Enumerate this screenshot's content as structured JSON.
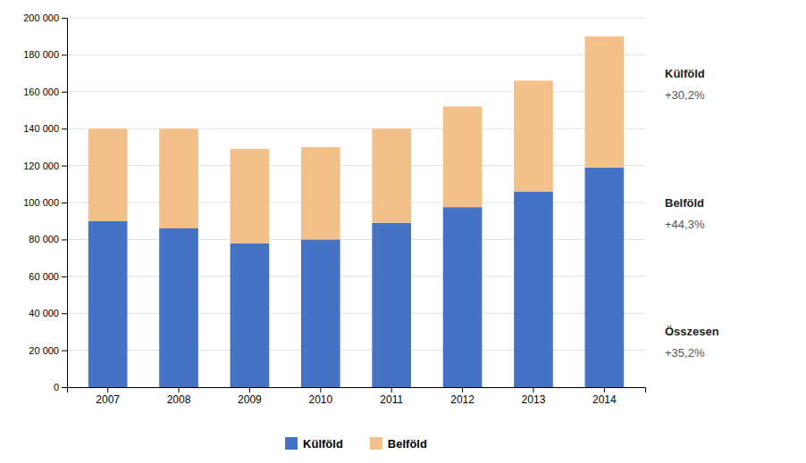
{
  "chart_data": {
    "type": "bar",
    "stacked": true,
    "categories": [
      "2007",
      "2008",
      "2009",
      "2010",
      "2011",
      "2012",
      "2013",
      "2014"
    ],
    "series": [
      {
        "name": "Külföld",
        "color": "#4472C4",
        "values": [
          90000,
          86000,
          78000,
          80000,
          89000,
          97500,
          106000,
          119000
        ]
      },
      {
        "name": "Belföld",
        "color": "#F4C08A",
        "values": [
          50000,
          54000,
          51000,
          50000,
          51000,
          54500,
          60000,
          71000
        ]
      }
    ],
    "ylim": [
      0,
      200000
    ],
    "yticks": [
      0,
      {
        "value": 20000,
        "label": "20 000"
      },
      {
        "value": 40000,
        "label": "40 000"
      },
      {
        "value": 60000,
        "label": "60 000"
      },
      {
        "value": 80000,
        "label": "80 000"
      },
      {
        "value": 100000,
        "label": "100 000"
      },
      {
        "value": 120000,
        "label": "120 000"
      },
      {
        "value": 140000,
        "label": "140 000"
      },
      {
        "value": 160000,
        "label": "160 000"
      },
      {
        "value": 180000,
        "label": "180 000"
      },
      {
        "value": 200000,
        "label": "200 000"
      }
    ],
    "grid": true,
    "legend": "bottom",
    "annotations": [
      {
        "text": "Külföld",
        "subtext": "+30,2%"
      },
      {
        "text": "Belföld",
        "subtext": "+44,3%"
      },
      {
        "text": "Összesen",
        "subtext": "+35,2%"
      }
    ]
  }
}
